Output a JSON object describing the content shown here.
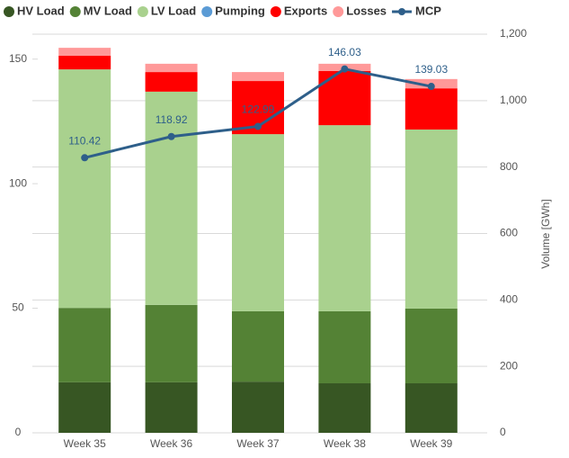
{
  "chart_data": {
    "type": "bar",
    "categories": [
      "Week 35",
      "Week 36",
      "Week 37",
      "Week 38",
      "Week 39"
    ],
    "series": [
      {
        "name": "HV Load",
        "color": "#375623",
        "axis": "y2",
        "values": [
          152,
          152,
          154,
          149,
          149
        ]
      },
      {
        "name": "MV Load",
        "color": "#548235",
        "axis": "y2",
        "values": [
          224,
          233,
          212,
          217,
          225
        ]
      },
      {
        "name": "LV Load",
        "color": "#a9d18e",
        "axis": "y2",
        "values": [
          718,
          642,
          533,
          560,
          539
        ]
      },
      {
        "name": "Pumping",
        "color": "#5b9bd5",
        "axis": "y2",
        "values": [
          0,
          0,
          0,
          0,
          0
        ]
      },
      {
        "name": "Exports",
        "color": "#ff0000",
        "axis": "y2",
        "values": [
          41,
          59,
          160,
          163,
          124
        ]
      },
      {
        "name": "Losses",
        "color": "#ff9999",
        "axis": "y2",
        "values": [
          24,
          25,
          27,
          22,
          28
        ]
      },
      {
        "name": "MCP",
        "color": "#2e5f8a",
        "type": "line",
        "axis": "y",
        "values": [
          110.42,
          118.92,
          122.99,
          146.03,
          139.03
        ]
      }
    ],
    "ylim": [
      0,
      160
    ],
    "yticks": [
      0,
      50,
      100,
      150
    ],
    "y2lim": [
      0,
      1200
    ],
    "y2ticks": [
      0,
      200,
      400,
      600,
      800,
      {
        "value": 1000,
        "label": "1,000"
      },
      {
        "value": 1200,
        "label": "1,200"
      }
    ],
    "y2label": "Volume [GWh]",
    "grid": true,
    "legend": "top"
  }
}
